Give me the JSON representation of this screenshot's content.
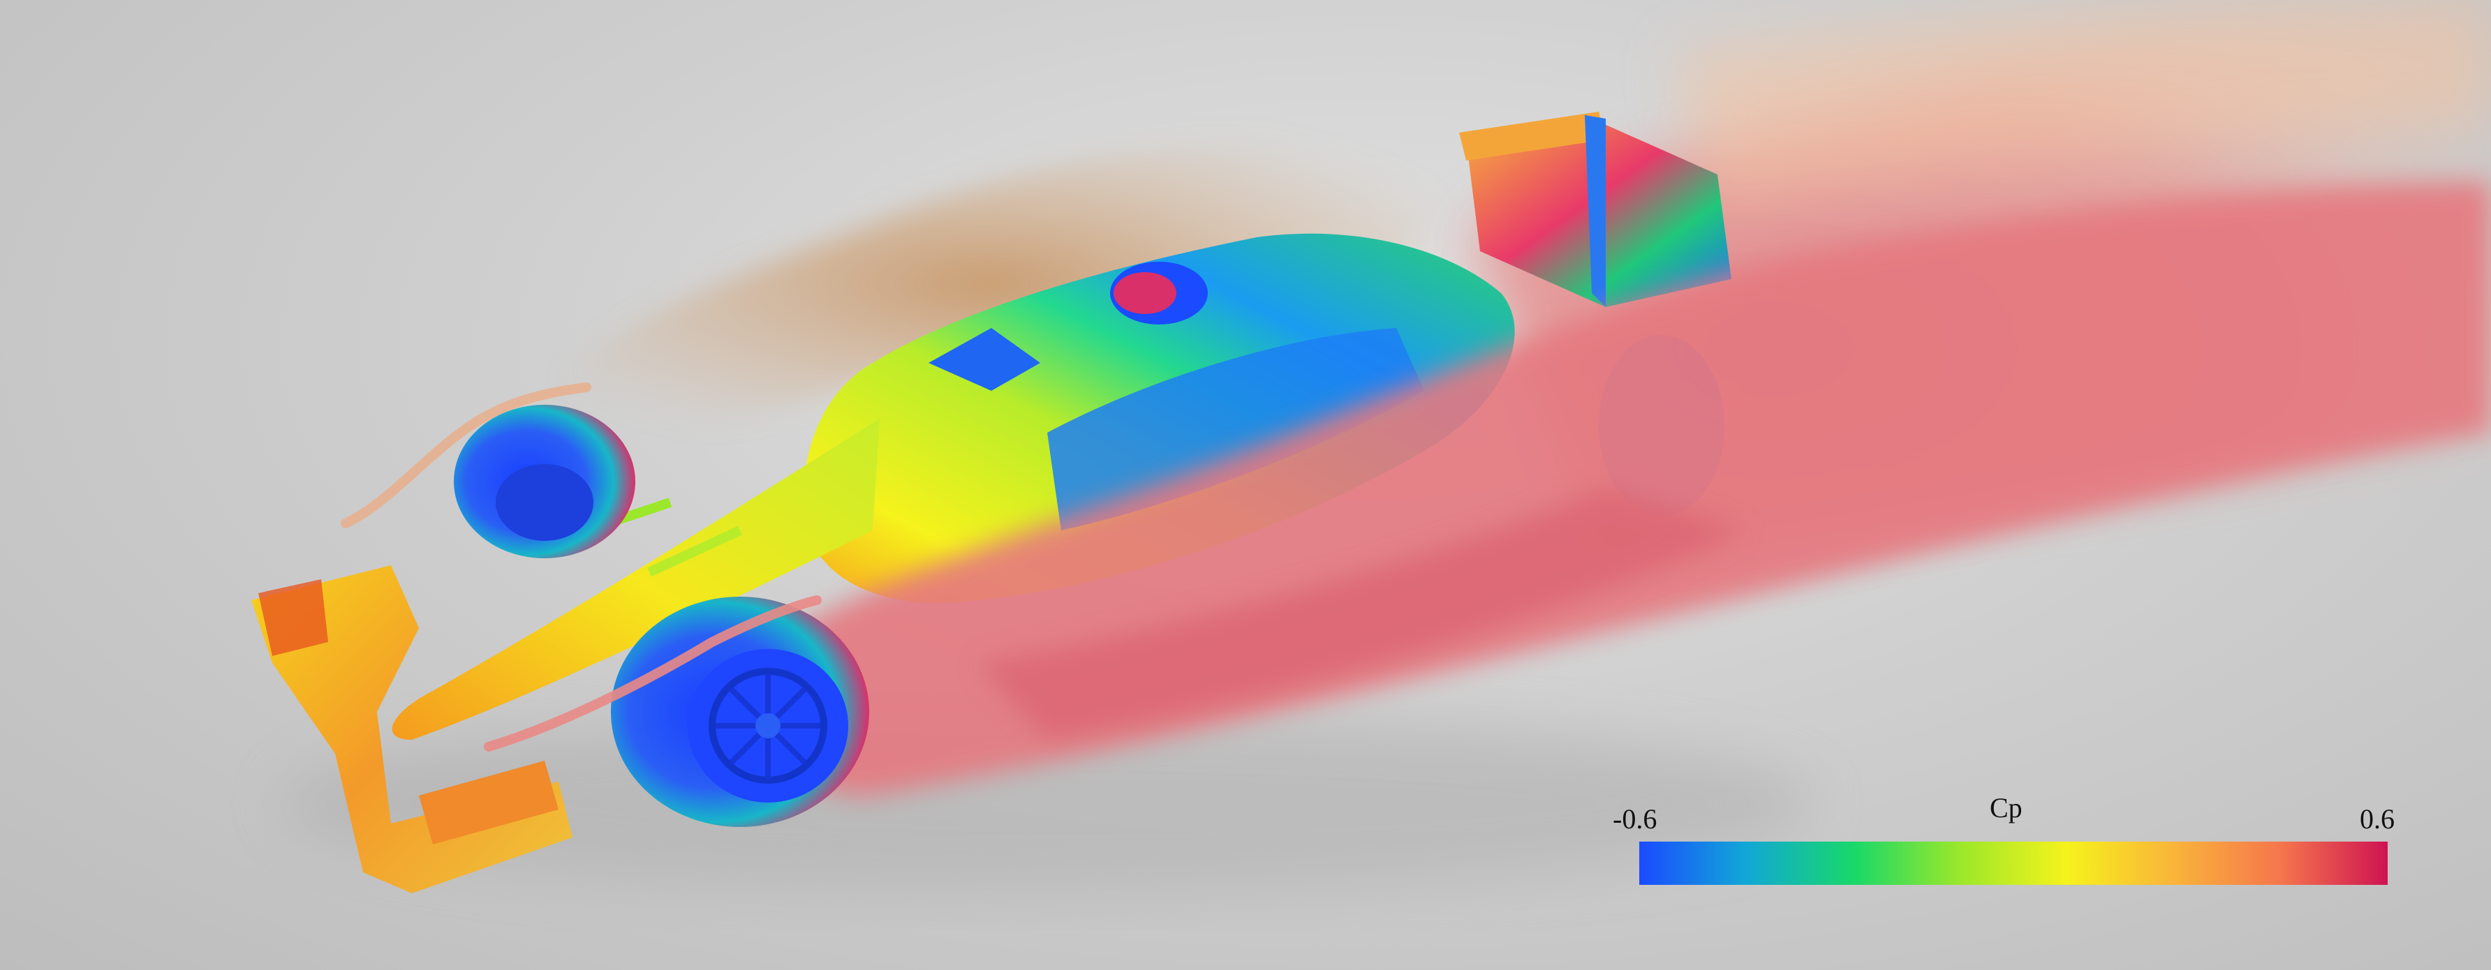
{
  "image": {
    "subject": "race-car-pressure-coefficient-render",
    "background_color": "#cdcdcd"
  },
  "colorbar": {
    "title": "Cp",
    "min_label": "-0.6",
    "max_label": "0.6",
    "colors": [
      "#1a4bff",
      "#12a7d6",
      "#18d86a",
      "#9be82a",
      "#f6f21c",
      "#f9b43a",
      "#f5764d",
      "#ce1351"
    ]
  }
}
